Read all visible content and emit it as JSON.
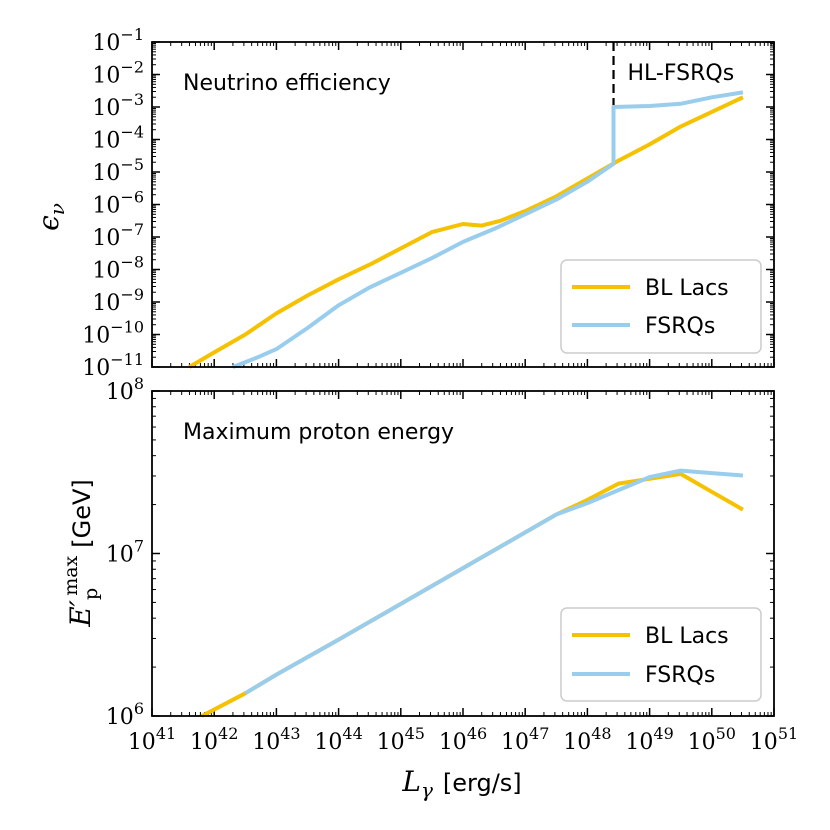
{
  "chart_data": [
    {
      "type": "line",
      "panel": "top",
      "annotation": "Neutrino efficiency",
      "ylabel": "ϵ",
      "ylabel_sub": "ν",
      "xscale": "log",
      "yscale": "log",
      "xlim_exp": [
        41,
        51
      ],
      "ylim_exp": [
        -11,
        -1
      ],
      "x_tick_exponents": [
        "41",
        "42",
        "43",
        "44",
        "45",
        "46",
        "47",
        "48",
        "49",
        "50",
        "51"
      ],
      "y_tick_exponents": [
        "−11",
        "−10",
        "−9",
        "−8",
        "−7",
        "−6",
        "−5",
        "−4",
        "−3",
        "−2",
        "−1"
      ],
      "tick_base": "10",
      "divider_x_exp": 48.42,
      "divider_label": "HL-FSRQs",
      "legend": {
        "location": "lower-right",
        "entries": [
          "BL Lacs",
          "FSRQs"
        ]
      },
      "series": [
        {
          "name": "BL Lacs",
          "color": "#f5c100",
          "x_exp": [
            41.6,
            42.0,
            42.5,
            43.0,
            43.5,
            44.0,
            44.5,
            45.0,
            45.2,
            45.5,
            46.0,
            46.3,
            46.6,
            47.0,
            47.5,
            48.0,
            48.5,
            49.0,
            49.5,
            50.0,
            50.5
          ],
          "y_exp": [
            -11.0,
            -10.55,
            -10.0,
            -9.35,
            -8.8,
            -8.3,
            -7.85,
            -7.35,
            -7.15,
            -6.85,
            -6.6,
            -6.65,
            -6.5,
            -6.2,
            -5.75,
            -5.2,
            -4.65,
            -4.15,
            -3.6,
            -3.15,
            -2.7
          ]
        },
        {
          "name": "FSRQs",
          "color": "#99cdee",
          "x_exp": [
            42.3,
            42.7,
            43.0,
            43.5,
            44.0,
            44.5,
            45.0,
            45.5,
            46.0,
            46.5,
            47.0,
            47.5,
            48.0,
            48.42,
            48.42,
            49.0,
            49.5,
            50.0,
            50.5
          ],
          "y_exp": [
            -11.0,
            -10.7,
            -10.45,
            -9.8,
            -9.1,
            -8.55,
            -8.1,
            -7.65,
            -7.15,
            -6.75,
            -6.3,
            -5.85,
            -5.3,
            -4.75,
            -3.0,
            -2.97,
            -2.9,
            -2.7,
            -2.55
          ]
        }
      ]
    },
    {
      "type": "line",
      "panel": "bottom",
      "annotation": "Maximum proton energy",
      "ylabel": "E′",
      "ylabel_sub": "p",
      "ylabel_sup": "max",
      "ylabel_unit": "[GeV]",
      "xlabel": "L",
      "xlabel_sub": "γ",
      "xlabel_unit": "[erg/s]",
      "xscale": "log",
      "yscale": "log",
      "xlim_exp": [
        41,
        51
      ],
      "ylim_exp": [
        6,
        8
      ],
      "x_tick_exponents": [
        "41",
        "42",
        "43",
        "44",
        "45",
        "46",
        "47",
        "48",
        "49",
        "50",
        "51"
      ],
      "y_tick_exponents": [
        "6",
        "7",
        "8"
      ],
      "tick_base": "10",
      "legend": {
        "location": "lower-right",
        "entries": [
          "BL Lacs",
          "FSRQs"
        ]
      },
      "series": [
        {
          "name": "BL Lacs",
          "color": "#f5c100",
          "x_exp": [
            41.8,
            42.5,
            43.0,
            44.0,
            45.0,
            46.0,
            47.0,
            47.5,
            48.0,
            48.5,
            49.0,
            49.5,
            50.0,
            50.5
          ],
          "y_exp": [
            6.0,
            6.14,
            6.255,
            6.47,
            6.69,
            6.91,
            7.13,
            7.24,
            7.33,
            7.43,
            7.46,
            7.49,
            7.38,
            7.27
          ]
        },
        {
          "name": "FSRQs",
          "color": "#99cdee",
          "x_exp": [
            42.5,
            43.0,
            44.0,
            45.0,
            46.0,
            47.0,
            47.5,
            48.0,
            48.5,
            49.0,
            49.5,
            50.0,
            50.5
          ],
          "y_exp": [
            6.14,
            6.255,
            6.47,
            6.69,
            6.91,
            7.13,
            7.24,
            7.31,
            7.39,
            7.47,
            7.51,
            7.495,
            7.48
          ]
        }
      ]
    }
  ]
}
